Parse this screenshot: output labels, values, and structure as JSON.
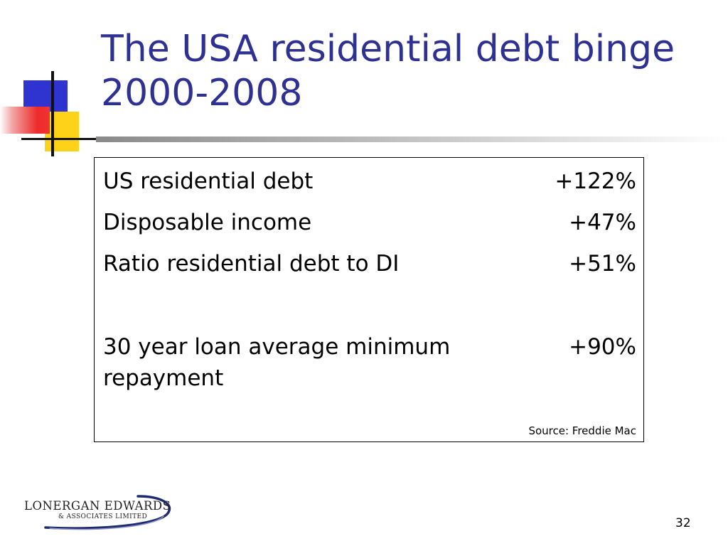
{
  "slide": {
    "title": "The USA residential debt binge 2000-2008",
    "rows": [
      {
        "label": "US residential debt",
        "value": "+122%"
      },
      {
        "label": "Disposable income",
        "value": "+47%"
      },
      {
        "label": "Ratio residential debt to DI",
        "value": "+51%"
      },
      {
        "label": "30 year loan average minimum repayment",
        "value": "+90%"
      }
    ],
    "source": "Source: Freddie Mac",
    "page_number": "32"
  },
  "logo": {
    "main": "LONERGAN EDWARDS",
    "sub": "& ASSOCIATES LIMITED"
  },
  "colors": {
    "title": "#2e3192",
    "deco_blue": "#2f34d0",
    "deco_yellow": "#ffd21a",
    "deco_red": "#ee2b2b"
  }
}
